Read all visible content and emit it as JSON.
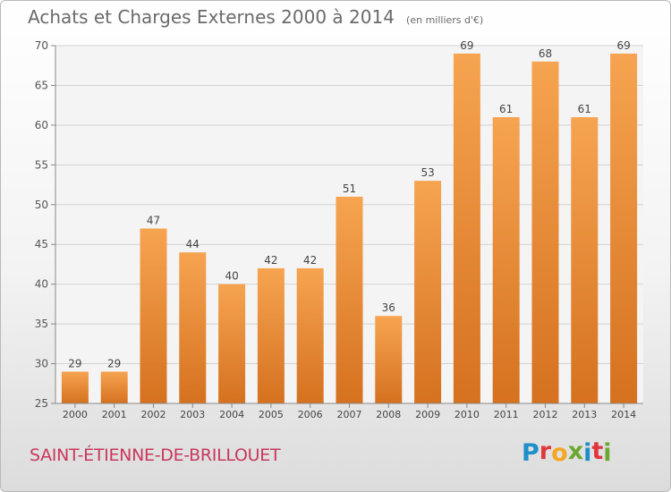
{
  "header": {
    "title": "Achats et Charges Externes 2000 à 2014",
    "unit": "(en milliers d'€)"
  },
  "footer": {
    "commune": "SAINT-ÉTIENNE-DE-BRILLOUET",
    "logo": "Proxiti"
  },
  "colors": {
    "bar_top": "#f6a451",
    "bar_bottom": "#d5711f",
    "commune_text": "#c8385c",
    "logo_letters": [
      "#1f8fc9",
      "#e0373f",
      "#f5a623",
      "#6aa832",
      "#1f8fc9",
      "#e0373f",
      "#6aa832"
    ]
  },
  "chart_data": {
    "type": "bar",
    "title": "Achats et Charges Externes 2000 à 2014",
    "subtitle": "(en milliers d'€)",
    "categories": [
      "2000",
      "2001",
      "2002",
      "2003",
      "2004",
      "2005",
      "2006",
      "2007",
      "2008",
      "2009",
      "2010",
      "2011",
      "2012",
      "2013",
      "2014"
    ],
    "values": [
      29,
      29,
      47,
      44,
      40,
      42,
      42,
      51,
      36,
      53,
      69,
      61,
      68,
      61,
      69
    ],
    "ylim": [
      25,
      70
    ],
    "yticks": [
      25,
      30,
      35,
      40,
      45,
      50,
      55,
      60,
      65,
      70
    ],
    "grid": true,
    "data_labels": true,
    "legend": "none"
  }
}
